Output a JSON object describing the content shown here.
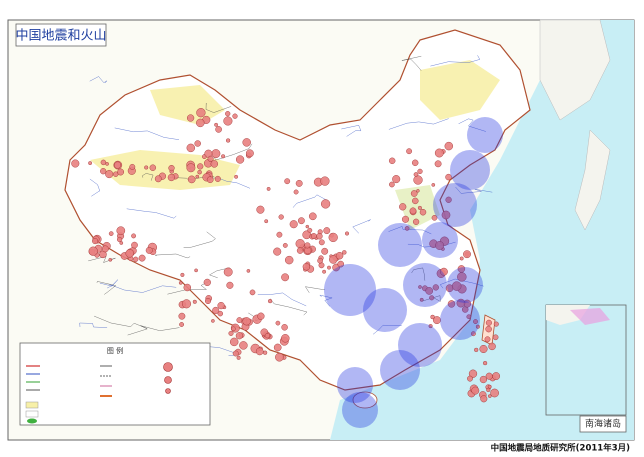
{
  "title": "中国地震和火山",
  "legend": {
    "title": "图 例"
  },
  "inset": {
    "label": "南海诸岛"
  },
  "credit": "中国地震局地质研究所(2011年3月)"
}
